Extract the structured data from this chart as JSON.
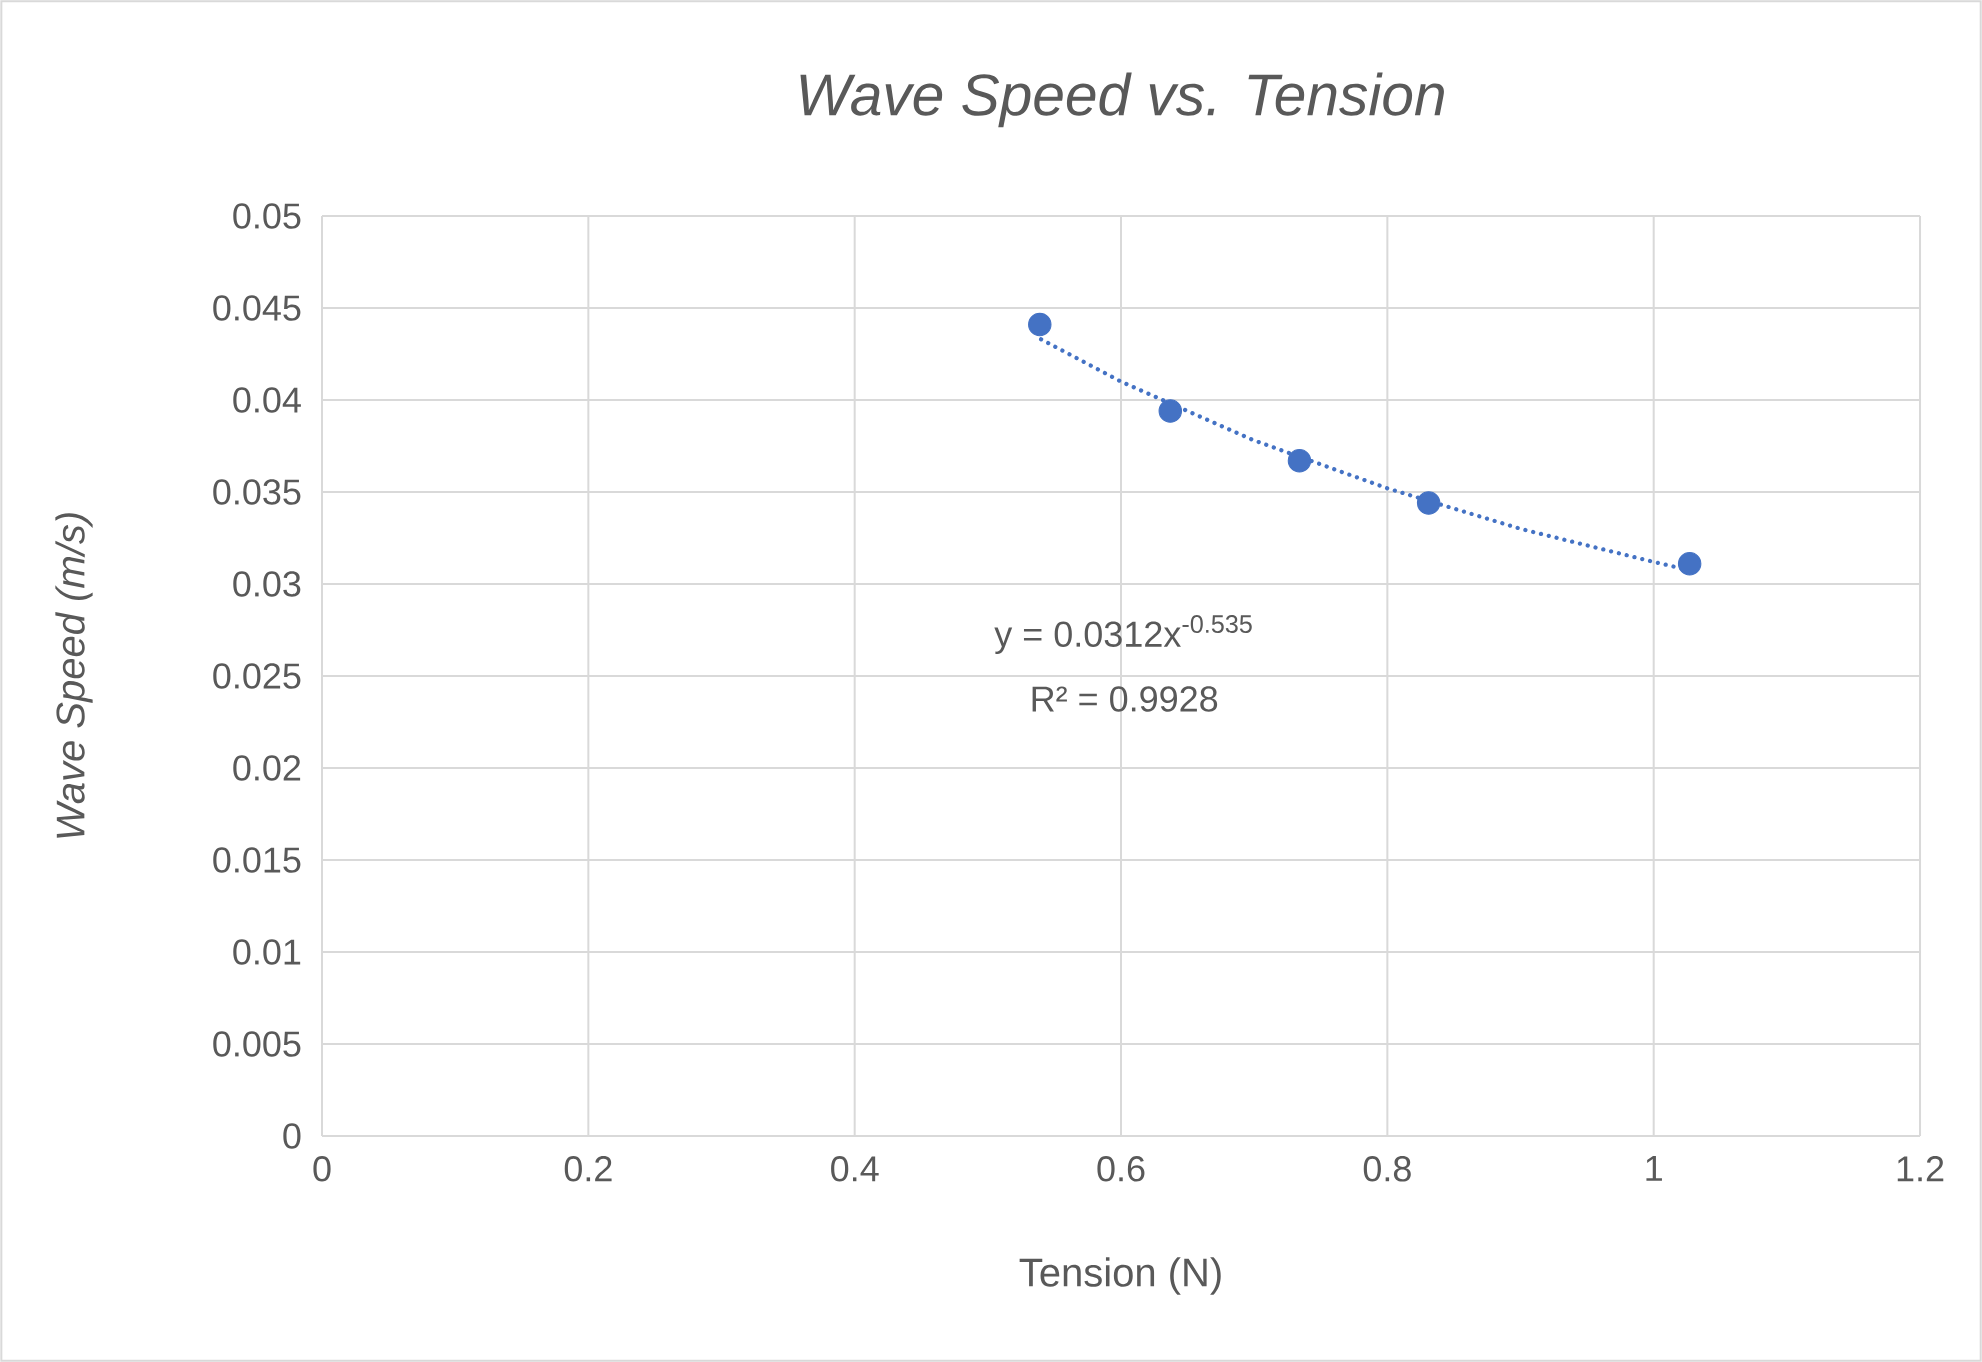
{
  "chart_data": {
    "type": "scatter",
    "title": "Wave Speed vs. Tension",
    "xlabel": "Tension (N)",
    "ylabel": "Wave Speed (m/s)",
    "xlim": [
      0,
      1.2
    ],
    "xticks": [
      0,
      0.2,
      0.4,
      0.6,
      0.8,
      1,
      1.2
    ],
    "ylim": [
      0,
      0.05
    ],
    "yticks": [
      0,
      0.005,
      0.01,
      0.015,
      0.02,
      0.025,
      0.03,
      0.035,
      0.04,
      0.045,
      0.05
    ],
    "grid": true,
    "series": [
      {
        "color": "#4472c4",
        "marker": "circle",
        "x": [
          0.539,
          0.637,
          0.734,
          0.831,
          1.027
        ],
        "values": [
          0.0441,
          0.0394,
          0.0367,
          0.0344,
          0.0311
        ]
      },
      {
        "type": "line",
        "color": "#4472c4",
        "line_style": "dotted",
        "marker": "none",
        "x": [
          0.54,
          0.6,
          0.7,
          0.8,
          0.9,
          1.0,
          1.03
        ],
        "values": [
          0.0433,
          0.041,
          0.0378,
          0.0352,
          0.033,
          0.0312,
          0.0307
        ]
      }
    ],
    "annotations": [
      "y = 0.0312x$^{-0.535}$",
      "R² = 0.9928"
    ]
  }
}
